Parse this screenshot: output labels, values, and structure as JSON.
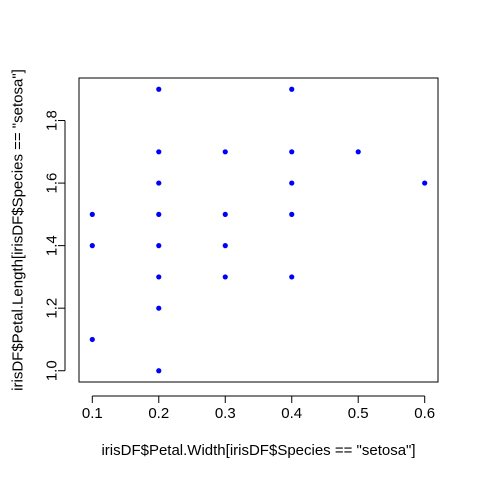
{
  "chart_data": {
    "type": "scatter",
    "title": "",
    "xlabel": "irisDF$Petal.Width[irisDF$Species == \"setosa\"]",
    "ylabel": "irisDF$Petal.Length[irisDF$Species == \"setosa\"]",
    "xlim": [
      0.08,
      0.62
    ],
    "ylim": [
      0.964,
      1.936
    ],
    "x_ticks": [
      0.1,
      0.2,
      0.3,
      0.4,
      0.5,
      0.6
    ],
    "x_tick_labels": [
      "0.1",
      "0.2",
      "0.3",
      "0.4",
      "0.5",
      "0.6"
    ],
    "y_ticks": [
      1.0,
      1.2,
      1.4,
      1.6,
      1.8
    ],
    "y_tick_labels": [
      "1.0",
      "1.2",
      "1.4",
      "1.6",
      "1.8"
    ],
    "grid": false,
    "legend": "none",
    "point_color": "#0000ff",
    "points": [
      {
        "x": 0.1,
        "y": 1.1
      },
      {
        "x": 0.1,
        "y": 1.4
      },
      {
        "x": 0.1,
        "y": 1.5
      },
      {
        "x": 0.2,
        "y": 1.0
      },
      {
        "x": 0.2,
        "y": 1.2
      },
      {
        "x": 0.2,
        "y": 1.3
      },
      {
        "x": 0.2,
        "y": 1.4
      },
      {
        "x": 0.2,
        "y": 1.5
      },
      {
        "x": 0.2,
        "y": 1.6
      },
      {
        "x": 0.2,
        "y": 1.7
      },
      {
        "x": 0.2,
        "y": 1.9
      },
      {
        "x": 0.3,
        "y": 1.3
      },
      {
        "x": 0.3,
        "y": 1.4
      },
      {
        "x": 0.3,
        "y": 1.5
      },
      {
        "x": 0.3,
        "y": 1.7
      },
      {
        "x": 0.4,
        "y": 1.3
      },
      {
        "x": 0.4,
        "y": 1.5
      },
      {
        "x": 0.4,
        "y": 1.6
      },
      {
        "x": 0.4,
        "y": 1.7
      },
      {
        "x": 0.4,
        "y": 1.9
      },
      {
        "x": 0.5,
        "y": 1.7
      },
      {
        "x": 0.6,
        "y": 1.6
      }
    ]
  }
}
